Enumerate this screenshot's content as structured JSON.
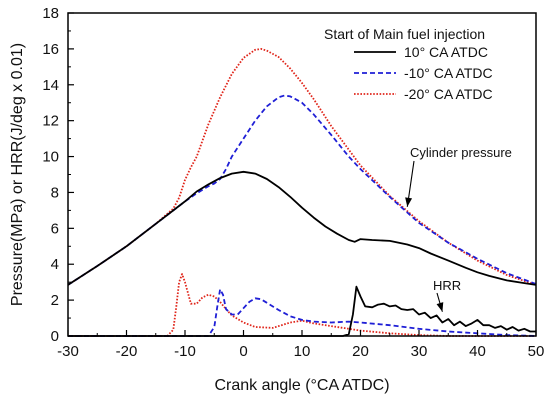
{
  "chart_data": {
    "type": "line",
    "xlabel": "Crank angle (°CA ATDC)",
    "ylabel": "Pressure(MPa) or HRR(J/deg x 0.01)",
    "xlim": [
      -30,
      50
    ],
    "ylim": [
      0,
      18
    ],
    "xticks": [
      -30,
      -20,
      -10,
      0,
      10,
      20,
      30,
      40,
      50
    ],
    "yticks": [
      0,
      2,
      4,
      6,
      8,
      10,
      12,
      14,
      16,
      18
    ],
    "xtick_labels": [
      "-30",
      "-20",
      "-10",
      "0",
      "10",
      "20",
      "30",
      "40",
      "50"
    ],
    "ytick_labels": [
      "0",
      "2",
      "4",
      "6",
      "8",
      "10",
      "12",
      "14",
      "16",
      "18"
    ],
    "grid": false,
    "legend": {
      "title": "Start of Main fuel injection",
      "placement": "top-right",
      "entries": [
        "10° CA ATDC",
        "-10° CA ATDC",
        "-20° CA ATDC"
      ]
    },
    "annotations": [
      {
        "text": "Cylinder pressure",
        "target_x": 28,
        "target_y": 7.2
      },
      {
        "text": "HRR",
        "target_x": 34,
        "target_y": 1.35
      }
    ],
    "series": [
      {
        "name": "10° CA ATDC",
        "color": "#000000",
        "dash": "solid",
        "pressure": {
          "x": [
            -30,
            -25,
            -20,
            -15,
            -12,
            -10,
            -8,
            -6,
            -4,
            -2,
            0,
            2,
            4,
            6,
            8,
            10,
            12,
            14,
            16,
            18,
            19,
            20,
            22,
            25,
            28,
            30,
            32,
            35,
            38,
            40,
            42,
            45,
            48,
            50
          ],
          "y": [
            2.85,
            3.9,
            5.0,
            6.25,
            7.0,
            7.5,
            8.05,
            8.45,
            8.8,
            9.05,
            9.15,
            9.05,
            8.75,
            8.3,
            7.75,
            7.15,
            6.6,
            6.1,
            5.7,
            5.35,
            5.25,
            5.4,
            5.35,
            5.3,
            5.1,
            4.9,
            4.6,
            4.2,
            3.8,
            3.55,
            3.35,
            3.1,
            2.95,
            2.85
          ]
        },
        "hrr": {
          "x": [
            -30,
            10,
            17,
            18,
            18.7,
            19.3,
            20,
            20.8,
            22,
            23,
            24,
            25,
            26,
            27,
            28,
            29,
            30,
            31,
            32,
            33,
            34,
            35,
            36,
            37,
            38,
            39,
            40,
            41,
            42,
            43,
            44,
            45,
            46,
            47,
            48,
            49,
            50
          ],
          "y": [
            0,
            0,
            0,
            0.1,
            1.2,
            2.75,
            2.2,
            1.65,
            1.6,
            1.75,
            1.8,
            1.65,
            1.7,
            1.5,
            1.45,
            1.5,
            1.2,
            1.3,
            1.0,
            1.15,
            0.75,
            0.95,
            0.6,
            0.8,
            0.55,
            0.7,
            0.9,
            0.6,
            0.6,
            0.45,
            0.55,
            0.35,
            0.5,
            0.3,
            0.4,
            0.25,
            0.25
          ]
        }
      },
      {
        "name": "-10° CA ATDC",
        "color": "#1f1fd6",
        "dash": "dashed",
        "pressure": {
          "x": [
            -30,
            -25,
            -20,
            -15,
            -12,
            -10,
            -8,
            -6,
            -5,
            -4,
            -3,
            -2,
            0,
            2,
            4,
            6,
            7,
            8,
            10,
            12,
            15,
            18,
            20,
            25,
            30,
            35,
            40,
            45,
            50
          ],
          "y": [
            2.85,
            3.9,
            5.0,
            6.25,
            7.0,
            7.5,
            7.95,
            8.35,
            8.5,
            8.75,
            9.3,
            10.0,
            11.0,
            12.0,
            12.8,
            13.3,
            13.4,
            13.35,
            13.0,
            12.35,
            11.2,
            10.0,
            9.3,
            7.75,
            6.3,
            5.2,
            4.3,
            3.5,
            2.9
          ]
        },
        "hrr": {
          "x": [
            -30,
            -6,
            -5,
            -4.5,
            -4,
            -3.5,
            -3,
            -2,
            -1,
            0,
            1,
            2,
            3,
            4,
            6,
            8,
            10,
            12,
            15,
            18,
            20,
            25,
            30,
            35,
            40,
            45,
            50
          ],
          "y": [
            0,
            0,
            0.5,
            1.6,
            2.6,
            2.3,
            1.5,
            1.2,
            1.2,
            1.55,
            1.9,
            2.1,
            2.05,
            1.85,
            1.45,
            1.1,
            0.9,
            0.8,
            0.75,
            0.8,
            0.75,
            0.6,
            0.4,
            0.25,
            0.15,
            0.05,
            0
          ]
        }
      },
      {
        "name": "-20° CA ATDC",
        "color": "#e0261b",
        "dash": "dotted",
        "pressure": {
          "x": [
            -30,
            -25,
            -20,
            -15,
            -12,
            -11,
            -10,
            -9,
            -8,
            -6,
            -4,
            -2,
            0,
            2,
            3,
            4,
            6,
            8,
            10,
            12,
            15,
            20,
            25,
            30,
            35,
            40,
            45,
            50
          ],
          "y": [
            2.85,
            3.9,
            5.0,
            6.25,
            7.1,
            7.7,
            8.7,
            9.4,
            10.0,
            11.8,
            13.3,
            14.6,
            15.5,
            15.95,
            16.0,
            15.9,
            15.55,
            14.9,
            14.1,
            13.2,
            11.7,
            9.5,
            7.8,
            6.4,
            5.2,
            4.2,
            3.4,
            2.85
          ]
        },
        "hrr": {
          "x": [
            -30,
            -13,
            -12,
            -11.5,
            -11,
            -10.5,
            -10,
            -9,
            -8,
            -7,
            -6,
            -5,
            -4,
            -3,
            -2,
            0,
            2,
            5,
            8,
            10,
            12,
            15,
            20,
            25,
            30,
            35,
            40,
            45,
            50
          ],
          "y": [
            0,
            0,
            0.35,
            1.6,
            3.0,
            3.45,
            3.0,
            1.8,
            1.8,
            2.15,
            2.3,
            2.2,
            1.9,
            1.5,
            1.15,
            0.75,
            0.5,
            0.45,
            0.75,
            0.85,
            0.7,
            0.55,
            0.3,
            0.15,
            0.05,
            0,
            0,
            0,
            0
          ]
        }
      }
    ]
  }
}
